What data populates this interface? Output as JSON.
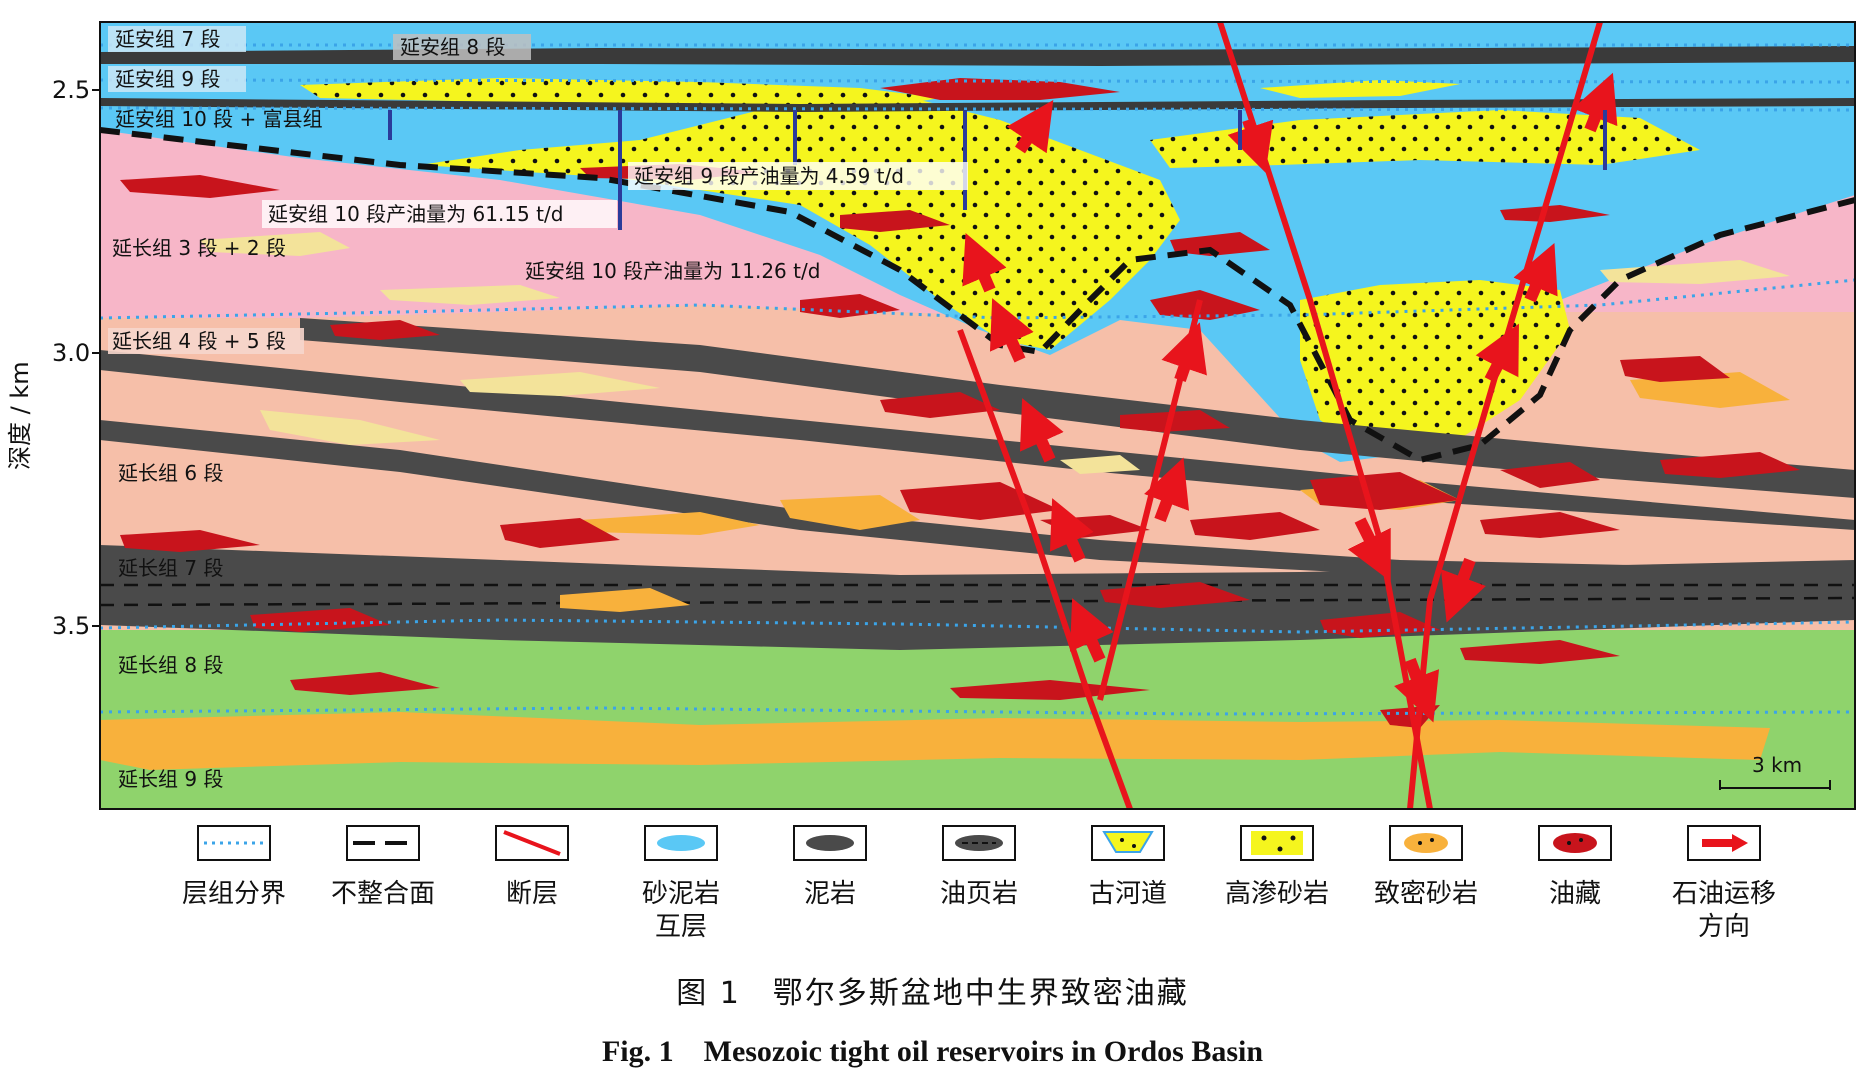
{
  "axis": {
    "ylabel": "深度 / km",
    "ticks": [
      "2.5",
      "3.0",
      "3.5"
    ]
  },
  "layers": {
    "yanan_7": "延安组 7 段",
    "yanan_8": "延安组 8 段",
    "yanan_9": "延安组 9 段",
    "yanan_10": "延安组 10 段 + 富县组",
    "yanchang_3_2": "延长组 3 段 + 2 段",
    "yanchang_4_5": "延长组 4 段 + 5 段",
    "yanchang_6": "延长组 6 段",
    "yanchang_7": "延长组 7 段",
    "yanchang_8": "延长组 8 段",
    "yanchang_9": "延长组 9 段"
  },
  "annotations": {
    "well_1": "延安组 10 段产油量为 61.15 t/d",
    "well_2": "延安组 9 段产油量为 4.59 t/d",
    "well_3": "延安组 10 段产油量为 11.26 t/d"
  },
  "scale_bar": "3 km",
  "legend": [
    {
      "key": "boundary",
      "label": "层组分界"
    },
    {
      "key": "unconformity",
      "label": "不整合面"
    },
    {
      "key": "fault",
      "label": "断层"
    },
    {
      "key": "sand_mud",
      "label": "砂泥岩",
      "label2": "互层"
    },
    {
      "key": "mudstone",
      "label": "泥岩"
    },
    {
      "key": "oil_shale",
      "label": "油页岩"
    },
    {
      "key": "paleochannel",
      "label": "古河道"
    },
    {
      "key": "high_perm",
      "label": "高渗砂岩"
    },
    {
      "key": "tight",
      "label": "致密砂岩"
    },
    {
      "key": "reservoir",
      "label": "油藏"
    },
    {
      "key": "migration",
      "label": "石油运移",
      "label2": "方向"
    }
  ],
  "colors": {
    "sky": "#5ac8f5",
    "pink": "#f7b6c8",
    "salmon": "#f6bfa9",
    "green": "#8fd36c",
    "yellow": "#f5f51e",
    "orange": "#f8b13c",
    "oil": "#c8141c",
    "mud": "#4a4a4a",
    "fault": "#e8141c",
    "boundary": "#3ba4e8"
  },
  "caption": {
    "cn": "图 1　鄂尔多斯盆地中生界致密油藏",
    "en": "Fig. 1　Mesozoic tight oil reservoirs in Ordos Basin"
  }
}
